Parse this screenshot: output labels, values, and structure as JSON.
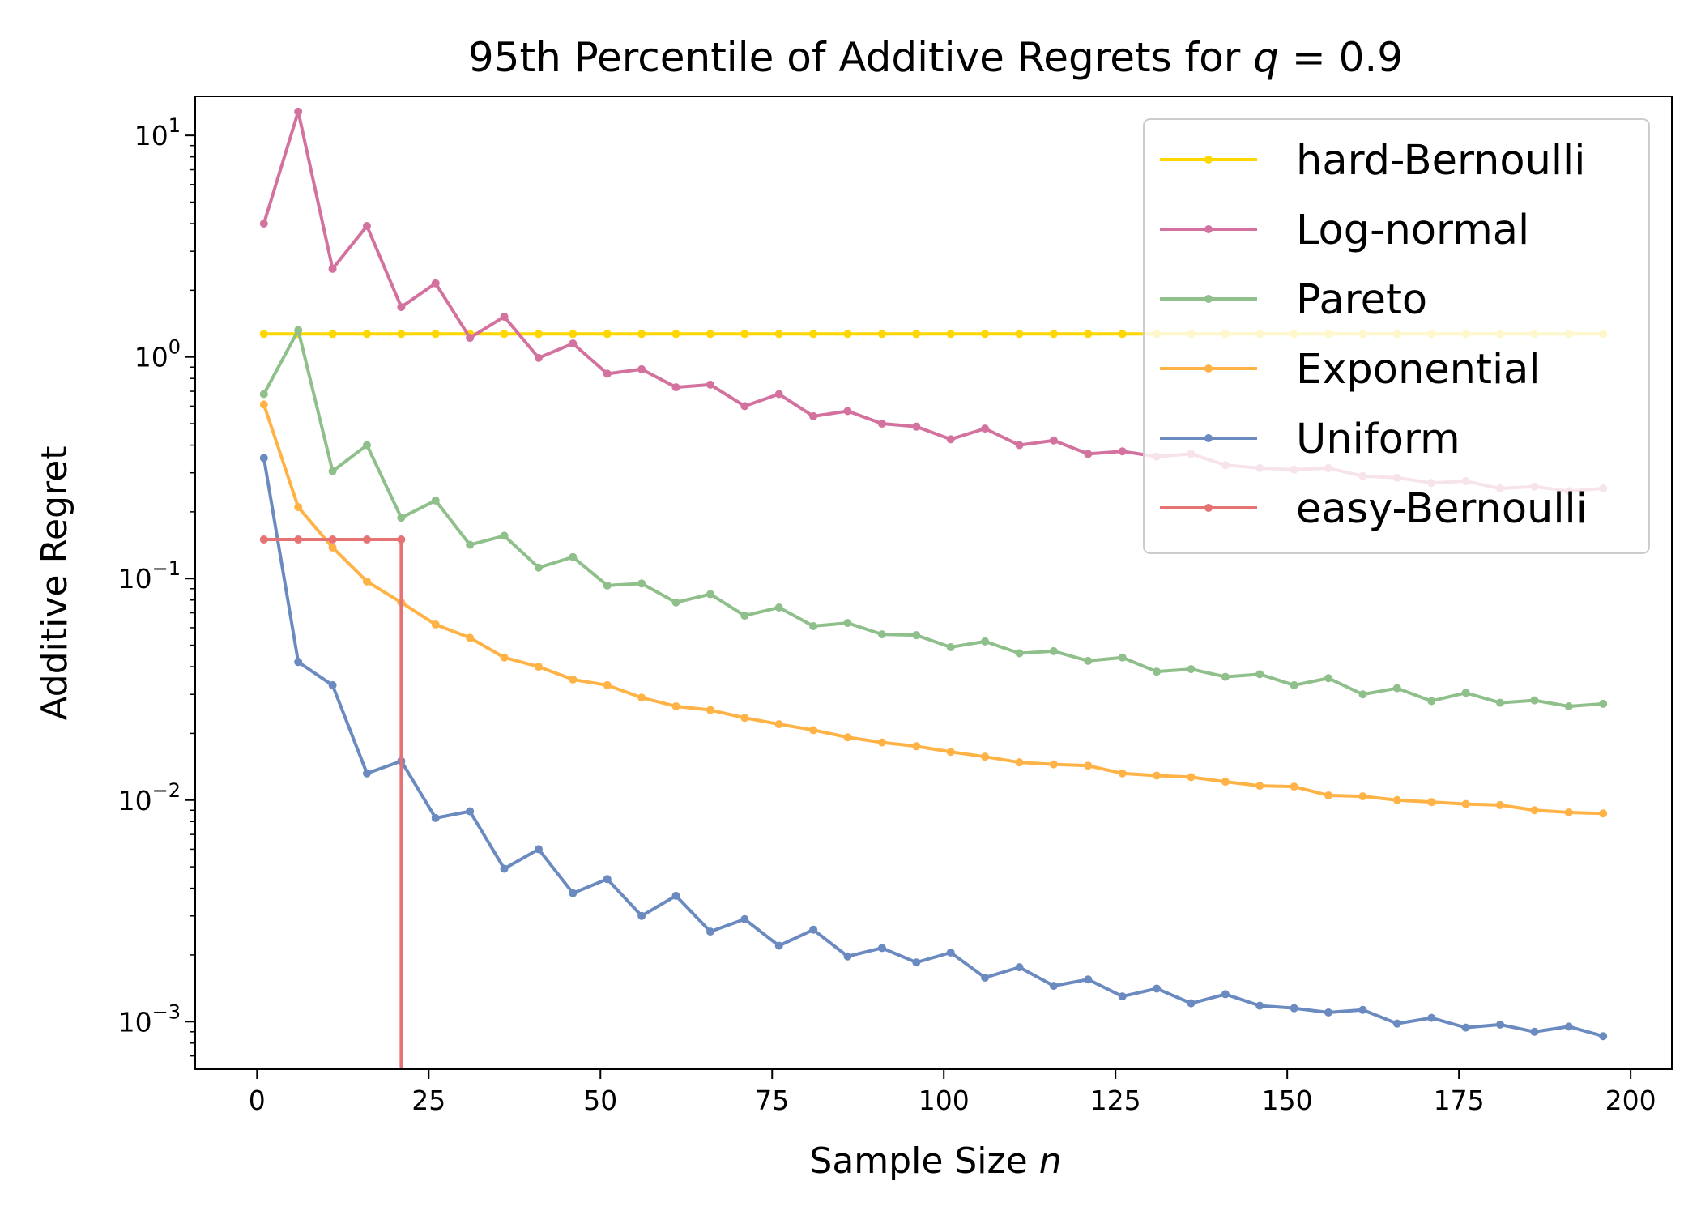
{
  "chart_data": {
    "type": "line",
    "title": "95th Percentile of Additive Regrets for q = 0.9",
    "title_prefix": "95th Percentile of Additive Regrets for ",
    "title_var": "q",
    "title_eq": " = 0.9",
    "xlabel": "Sample Size n",
    "xlabel_prefix": "Sample Size ",
    "xlabel_var": "n",
    "ylabel": "Additive Regret",
    "yscale": "log",
    "xlim": [
      -9,
      206
    ],
    "ylim": [
      0.00061,
      15
    ],
    "x_ticks": [
      0,
      25,
      50,
      75,
      100,
      125,
      150,
      175,
      200
    ],
    "x_tick_labels": [
      "0",
      "25",
      "50",
      "75",
      "100",
      "125",
      "150",
      "175",
      "200"
    ],
    "y_ticks": [
      {
        "value": 0.001,
        "base": "10",
        "exp": "−3"
      },
      {
        "value": 0.01,
        "base": "10",
        "exp": "−2"
      },
      {
        "value": 0.1,
        "base": "10",
        "exp": "−1"
      },
      {
        "value": 1,
        "base": "10",
        "exp": "0"
      },
      {
        "value": 10,
        "base": "10",
        "exp": "1"
      }
    ],
    "legend_position": "top-right",
    "x": [
      1,
      6,
      11,
      16,
      21,
      26,
      31,
      36,
      41,
      46,
      51,
      56,
      61,
      66,
      71,
      76,
      81,
      86,
      91,
      96,
      101,
      106,
      111,
      116,
      121,
      126,
      131,
      136,
      141,
      146,
      151,
      156,
      161,
      166,
      171,
      176,
      181,
      186,
      191,
      196
    ],
    "series": [
      {
        "name": "hard-Bernoulli",
        "color": "#FFD700",
        "values": [
          1.27,
          1.27,
          1.27,
          1.27,
          1.27,
          1.27,
          1.27,
          1.27,
          1.27,
          1.27,
          1.27,
          1.27,
          1.27,
          1.27,
          1.27,
          1.27,
          1.27,
          1.27,
          1.27,
          1.27,
          1.27,
          1.27,
          1.27,
          1.27,
          1.27,
          1.27,
          1.27,
          1.27,
          1.27,
          1.27,
          1.27,
          1.27,
          1.27,
          1.27,
          1.27,
          1.27,
          1.27,
          1.27,
          1.27,
          1.27
        ]
      },
      {
        "name": "Log-normal",
        "color": "#D4729F",
        "values": [
          4.0,
          12.8,
          2.5,
          3.9,
          1.68,
          2.15,
          1.22,
          1.52,
          0.99,
          1.15,
          0.84,
          0.88,
          0.73,
          0.75,
          0.6,
          0.68,
          0.54,
          0.57,
          0.5,
          0.485,
          0.425,
          0.475,
          0.4,
          0.42,
          0.365,
          0.375,
          0.355,
          0.365,
          0.325,
          0.315,
          0.31,
          0.315,
          0.29,
          0.285,
          0.27,
          0.275,
          0.255,
          0.26,
          0.248,
          0.255
        ]
      },
      {
        "name": "Pareto",
        "color": "#8FBF8A",
        "values": [
          0.68,
          1.32,
          0.305,
          0.4,
          0.188,
          0.225,
          0.142,
          0.156,
          0.112,
          0.125,
          0.093,
          0.095,
          0.078,
          0.085,
          0.068,
          0.074,
          0.061,
          0.063,
          0.056,
          0.0555,
          0.049,
          0.052,
          0.046,
          0.047,
          0.0425,
          0.044,
          0.038,
          0.039,
          0.036,
          0.037,
          0.033,
          0.0355,
          0.03,
          0.032,
          0.028,
          0.0305,
          0.0275,
          0.0282,
          0.0265,
          0.0272
        ]
      },
      {
        "name": "Exponential",
        "color": "#FFB347",
        "values": [
          0.61,
          0.21,
          0.138,
          0.097,
          0.078,
          0.062,
          0.054,
          0.044,
          0.04,
          0.035,
          0.033,
          0.029,
          0.0265,
          0.0255,
          0.0235,
          0.022,
          0.0207,
          0.0192,
          0.0182,
          0.0175,
          0.0165,
          0.0157,
          0.0148,
          0.0145,
          0.0143,
          0.0132,
          0.0129,
          0.0127,
          0.0121,
          0.0116,
          0.0115,
          0.0105,
          0.0104,
          0.01,
          0.0098,
          0.0096,
          0.0095,
          0.009,
          0.0088,
          0.0087
        ]
      },
      {
        "name": "Uniform",
        "color": "#6A8AC0",
        "values": [
          0.35,
          0.042,
          0.033,
          0.0132,
          0.015,
          0.0083,
          0.0089,
          0.0049,
          0.006,
          0.0038,
          0.0044,
          0.003,
          0.0037,
          0.00255,
          0.0029,
          0.0022,
          0.0026,
          0.00197,
          0.00215,
          0.00185,
          0.00205,
          0.00158,
          0.00176,
          0.00145,
          0.00155,
          0.0013,
          0.00141,
          0.00121,
          0.00133,
          0.00118,
          0.00115,
          0.0011,
          0.00113,
          0.00098,
          0.00104,
          0.00094,
          0.00097,
          0.0009,
          0.00095,
          0.00086
        ]
      },
      {
        "name": "easy-Bernoulli",
        "color": "#E57373",
        "x_values": [
          1,
          6,
          11,
          16,
          21
        ],
        "values": [
          0.15,
          0.15,
          0.15,
          0.15,
          0.15
        ],
        "drop_x": 21,
        "drop_note": "vertical line from last point down to zero (below axis)"
      }
    ]
  }
}
